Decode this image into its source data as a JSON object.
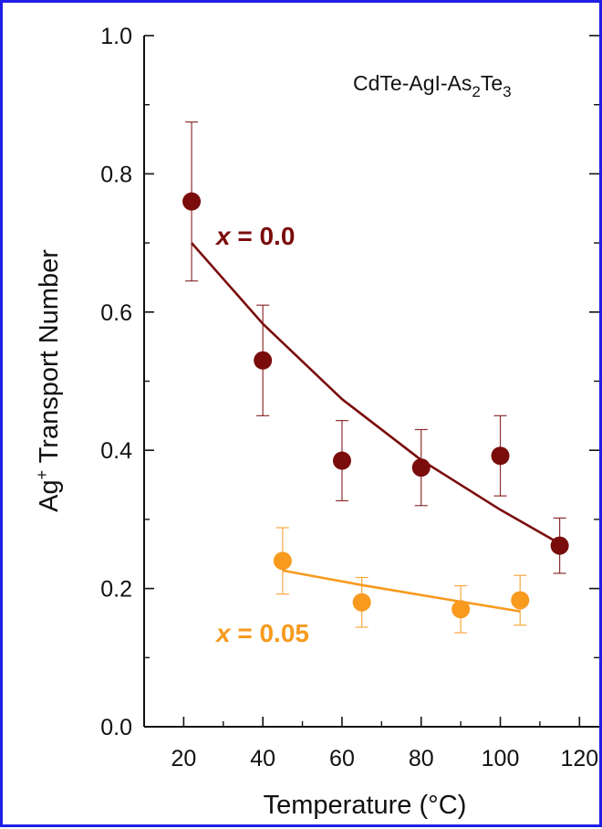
{
  "chart_data": {
    "type": "scatter",
    "annotation": {
      "prefix": "CdTe-AgI-As",
      "sub1": "2",
      "mid": "Te",
      "sub2": "3"
    },
    "xlabel": "Temperature (°C)",
    "ylabel": {
      "prefix": "Ag",
      "sup": "+",
      "suffix": " Transport Number"
    },
    "xlim": [
      10,
      125
    ],
    "ylim": [
      0.0,
      1.0
    ],
    "x_ticks": [
      "20",
      "40",
      "60",
      "80",
      "100",
      "120"
    ],
    "y_ticks": [
      "0.0",
      "0.2",
      "0.4",
      "0.6",
      "0.8",
      "1.0"
    ],
    "grid": false,
    "series": [
      {
        "name": "x = 0.0",
        "label_var": "x",
        "label_val": " = 0.0",
        "color": "#7a0c0c",
        "x": [
          22,
          40,
          60,
          80,
          100,
          115
        ],
        "y": [
          0.76,
          0.53,
          0.385,
          0.375,
          0.392,
          0.262
        ],
        "err": [
          0.115,
          0.08,
          0.058,
          0.055,
          0.058,
          0.04
        ],
        "fit": [
          [
            22,
            0.7
          ],
          [
            40,
            0.583
          ],
          [
            60,
            0.474
          ],
          [
            80,
            0.386
          ],
          [
            100,
            0.314
          ],
          [
            115,
            0.265
          ]
        ]
      },
      {
        "name": "x = 0.05",
        "label_var": "x",
        "label_val": " = 0.05",
        "color": "#f79a1e",
        "x": [
          45,
          65,
          90,
          105
        ],
        "y": [
          0.24,
          0.18,
          0.17,
          0.183
        ],
        "err": [
          0.048,
          0.036,
          0.034,
          0.036
        ],
        "fit": [
          [
            45,
            0.226
          ],
          [
            65,
            0.205
          ],
          [
            90,
            0.181
          ],
          [
            105,
            0.167
          ]
        ]
      }
    ]
  }
}
